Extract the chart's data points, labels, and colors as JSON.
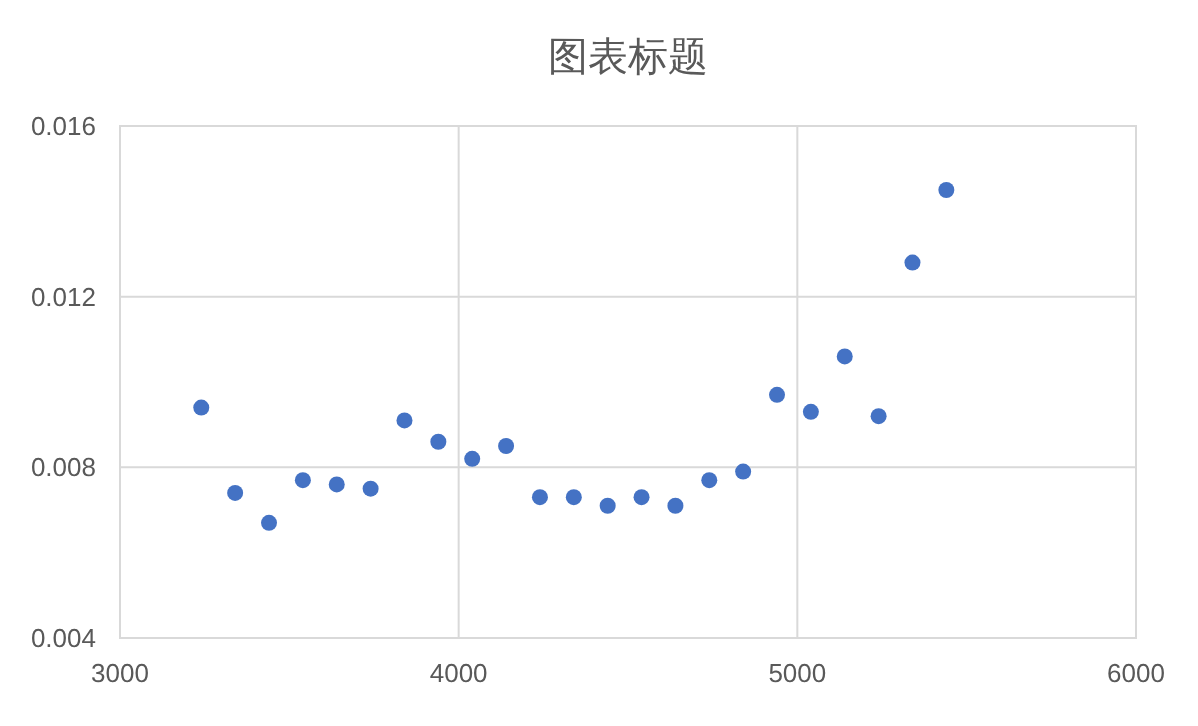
{
  "chart_data": {
    "type": "scatter",
    "title": "图表标题",
    "x": [
      3240,
      3340,
      3440,
      3540,
      3640,
      3740,
      3840,
      3940,
      4040,
      4140,
      4240,
      4340,
      4440,
      4540,
      4640,
      4740,
      4840,
      4940,
      5040,
      5140,
      5240,
      5340,
      5440
    ],
    "series": [
      {
        "color": "#4472c4",
        "values": [
          0.0094,
          0.0074,
          0.0067,
          0.0077,
          0.0076,
          0.0075,
          0.0091,
          0.0086,
          0.0082,
          0.0085,
          0.0073,
          0.0073,
          0.0071,
          0.0073,
          0.0071,
          0.0077,
          0.0079,
          0.0097,
          0.0093,
          0.0106,
          0.0092,
          0.0128,
          0.0145
        ]
      }
    ],
    "xlim": [
      3000,
      6000
    ],
    "xticks": [
      3000,
      4000,
      5000,
      6000
    ],
    "ylim": [
      0.004,
      0.016
    ],
    "yticks": [
      0.004,
      0.008,
      0.012,
      0.016
    ],
    "grid": true,
    "marker": "circle"
  }
}
